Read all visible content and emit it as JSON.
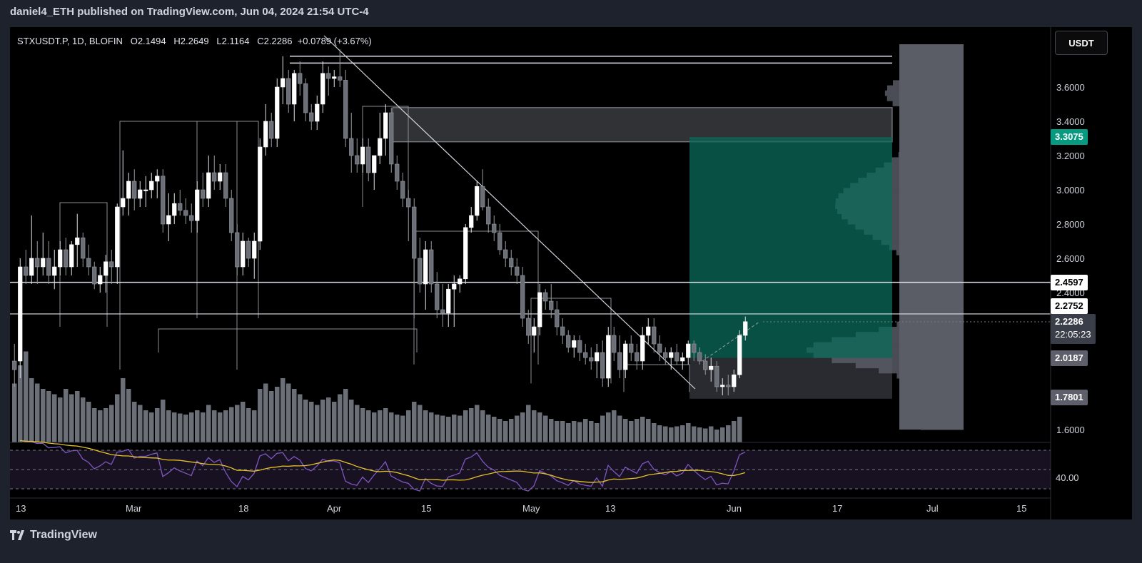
{
  "header": {
    "publisher_line": "daniel4_ETH published on TradingView.com, Jun 04, 2024 21:54 UTC-4"
  },
  "legend": {
    "symbol": "STXUSDT.P, 1D, BLOFIN",
    "open": "O2.1494",
    "high": "H2.2649",
    "low": "L2.1164",
    "close": "C2.2286",
    "change": "+0.0789 (+3.67%)"
  },
  "currency_button": "USDT",
  "price_tags": {
    "target": "3.3075",
    "level_high": "2.4597",
    "level_mid": "2.2752",
    "last": "2.2286",
    "countdown": "22:05:23",
    "entry": "2.0187",
    "stop": "1.7801"
  },
  "rsi_label": "40.00",
  "footer": {
    "brand": "TradingView"
  },
  "colors": {
    "background": "#000000",
    "target_zone": "#0b6b5a",
    "target_tag": "#089981",
    "volume": "#6b6f78",
    "rsi_line": "#7e57c2",
    "rsi_ma": "#e6c229"
  },
  "chart_data": {
    "type": "candlestick",
    "symbol": "STXUSDT.P",
    "timeframe": "1D",
    "y_ticks": [
      1.6,
      2.0,
      2.2,
      2.4,
      2.6,
      2.8,
      3.0,
      3.2,
      3.4,
      3.6
    ],
    "y_tick_labels": [
      "1.6000",
      "2.4000",
      "2.6000",
      "2.8000",
      "3.0000",
      "3.2000",
      "3.4000",
      "3.6000"
    ],
    "x_labels": [
      "13",
      "Mar",
      "18",
      "Apr",
      "15",
      "May",
      "13",
      "Jun",
      "17",
      "Jul",
      "15"
    ],
    "horizontal_levels": [
      3.78,
      3.74,
      2.4597,
      2.2752
    ],
    "position": {
      "target": 3.3075,
      "entry": 2.0187,
      "stop": 1.7801
    },
    "supply_zone": [
      3.28,
      3.48
    ],
    "candles": [
      [
        2.0,
        2.1,
        1.85,
        1.95
      ],
      [
        2.0,
        2.6,
        1.9,
        2.55
      ],
      [
        2.55,
        2.65,
        2.45,
        2.5
      ],
      [
        2.5,
        2.85,
        2.45,
        2.6
      ],
      [
        2.6,
        2.7,
        2.45,
        2.55
      ],
      [
        2.55,
        2.75,
        2.5,
        2.6
      ],
      [
        2.6,
        2.7,
        2.45,
        2.5
      ],
      [
        2.5,
        2.65,
        2.42,
        2.55
      ],
      [
        2.55,
        2.7,
        2.5,
        2.65
      ],
      [
        2.65,
        2.72,
        2.5,
        2.55
      ],
      [
        2.55,
        2.7,
        2.5,
        2.68
      ],
      [
        2.68,
        2.86,
        2.55,
        2.72
      ],
      [
        2.72,
        2.75,
        2.55,
        2.6
      ],
      [
        2.6,
        2.68,
        2.5,
        2.55
      ],
      [
        2.55,
        2.58,
        2.42,
        2.45
      ],
      [
        2.45,
        2.55,
        2.4,
        2.5
      ],
      [
        2.5,
        2.62,
        2.4,
        2.58
      ],
      [
        2.58,
        2.65,
        2.45,
        2.55
      ],
      [
        2.55,
        2.92,
        2.45,
        2.9
      ],
      [
        2.9,
        3.23,
        2.85,
        2.95
      ],
      [
        2.95,
        3.1,
        2.85,
        3.05
      ],
      [
        3.05,
        3.12,
        2.88,
        2.95
      ],
      [
        2.95,
        3.05,
        2.9,
        3.0
      ],
      [
        3.0,
        3.08,
        2.9,
        3.0
      ],
      [
        3.0,
        3.1,
        2.95,
        3.05
      ],
      [
        3.05,
        3.12,
        2.95,
        3.08
      ],
      [
        3.08,
        3.12,
        2.75,
        2.8
      ],
      [
        2.8,
        2.98,
        2.7,
        2.85
      ],
      [
        2.85,
        2.98,
        2.8,
        2.92
      ],
      [
        2.92,
        3.0,
        2.85,
        2.88
      ],
      [
        2.88,
        2.95,
        2.8,
        2.85
      ],
      [
        2.85,
        2.92,
        2.75,
        2.82
      ],
      [
        2.82,
        3.05,
        2.75,
        3.0
      ],
      [
        3.0,
        3.1,
        2.9,
        2.95
      ],
      [
        2.95,
        3.2,
        2.9,
        3.1
      ],
      [
        3.1,
        3.2,
        3.0,
        3.05
      ],
      [
        3.05,
        3.15,
        3.0,
        3.1
      ],
      [
        3.1,
        3.15,
        2.9,
        2.95
      ],
      [
        2.95,
        3.0,
        2.7,
        2.75
      ],
      [
        2.75,
        2.8,
        2.5,
        2.55
      ],
      [
        2.55,
        2.75,
        2.5,
        2.7
      ],
      [
        2.7,
        2.72,
        2.55,
        2.6
      ],
      [
        2.6,
        2.75,
        2.48,
        2.7
      ],
      [
        2.7,
        3.3,
        2.65,
        3.25
      ],
      [
        3.25,
        3.5,
        3.2,
        3.4
      ],
      [
        3.4,
        3.45,
        3.25,
        3.3
      ],
      [
        3.3,
        3.65,
        3.25,
        3.6
      ],
      [
        3.6,
        3.78,
        3.5,
        3.65
      ],
      [
        3.65,
        3.7,
        3.45,
        3.5
      ],
      [
        3.5,
        3.7,
        3.4,
        3.68
      ],
      [
        3.68,
        3.75,
        3.55,
        3.62
      ],
      [
        3.62,
        3.65,
        3.4,
        3.45
      ],
      [
        3.45,
        3.5,
        3.35,
        3.4
      ],
      [
        3.4,
        3.55,
        3.35,
        3.5
      ],
      [
        3.5,
        3.75,
        3.45,
        3.68
      ],
      [
        3.68,
        3.72,
        3.55,
        3.65
      ],
      [
        3.65,
        3.7,
        3.6,
        3.66
      ],
      [
        3.66,
        3.82,
        3.6,
        3.64
      ],
      [
        3.64,
        3.7,
        3.25,
        3.3
      ],
      [
        3.3,
        3.45,
        3.1,
        3.2
      ],
      [
        3.2,
        3.3,
        3.1,
        3.15
      ],
      [
        3.15,
        3.3,
        3.1,
        3.25
      ],
      [
        3.25,
        3.3,
        3.05,
        3.1
      ],
      [
        3.1,
        3.2,
        3.0,
        3.2
      ],
      [
        3.2,
        3.45,
        3.15,
        3.3
      ],
      [
        3.3,
        3.5,
        3.2,
        3.45
      ],
      [
        3.45,
        3.48,
        3.1,
        3.15
      ],
      [
        3.15,
        3.2,
        3.0,
        3.05
      ],
      [
        3.05,
        3.1,
        2.9,
        2.95
      ],
      [
        2.95,
        3.0,
        2.7,
        2.9
      ],
      [
        2.9,
        2.95,
        2.25,
        2.6
      ],
      [
        2.6,
        2.72,
        2.4,
        2.45
      ],
      [
        2.45,
        2.7,
        2.3,
        2.65
      ],
      [
        2.65,
        2.7,
        2.4,
        2.45
      ],
      [
        2.45,
        2.52,
        2.25,
        2.3
      ],
      [
        2.3,
        2.45,
        2.2,
        2.28
      ],
      [
        2.28,
        2.45,
        2.2,
        2.42
      ],
      [
        2.42,
        2.5,
        2.2,
        2.45
      ],
      [
        2.45,
        2.5,
        2.4,
        2.48
      ],
      [
        2.48,
        2.8,
        2.45,
        2.78
      ],
      [
        2.78,
        2.9,
        2.75,
        2.85
      ],
      [
        2.85,
        3.05,
        2.82,
        3.02
      ],
      [
        3.02,
        3.12,
        2.88,
        2.9
      ],
      [
        2.9,
        2.95,
        2.75,
        2.8
      ],
      [
        2.8,
        2.85,
        2.7,
        2.75
      ],
      [
        2.75,
        2.8,
        2.62,
        2.65
      ],
      [
        2.65,
        2.7,
        2.55,
        2.6
      ],
      [
        2.6,
        2.65,
        2.5,
        2.55
      ],
      [
        2.55,
        2.6,
        2.45,
        2.5
      ],
      [
        2.5,
        2.55,
        2.2,
        2.25
      ],
      [
        2.25,
        2.3,
        2.1,
        2.15
      ],
      [
        2.15,
        2.25,
        2.05,
        2.2
      ],
      [
        2.2,
        2.45,
        2.15,
        2.4
      ],
      [
        2.4,
        2.42,
        2.3,
        2.35
      ],
      [
        2.35,
        2.45,
        2.25,
        2.3
      ],
      [
        2.3,
        2.35,
        2.15,
        2.2
      ],
      [
        2.2,
        2.25,
        2.1,
        2.15
      ],
      [
        2.15,
        2.18,
        2.05,
        2.08
      ],
      [
        2.08,
        2.15,
        2.02,
        2.12
      ],
      [
        2.12,
        2.15,
        2.0,
        2.05
      ],
      [
        2.05,
        2.1,
        1.98,
        2.02
      ],
      [
        2.02,
        2.08,
        1.95,
        2.0
      ],
      [
        2.0,
        2.1,
        1.9,
        2.05
      ],
      [
        2.05,
        2.12,
        1.85,
        1.9
      ],
      [
        1.9,
        2.2,
        1.85,
        2.15
      ],
      [
        2.15,
        2.2,
        2.0,
        2.05
      ],
      [
        2.05,
        2.15,
        1.9,
        1.95
      ],
      [
        1.95,
        2.12,
        1.9,
        2.1
      ],
      [
        2.1,
        2.15,
        2.0,
        2.05
      ],
      [
        2.05,
        2.1,
        1.95,
        2.0
      ],
      [
        2.0,
        2.2,
        1.95,
        2.15
      ],
      [
        2.15,
        2.25,
        2.1,
        2.2
      ],
      [
        2.2,
        2.25,
        2.05,
        2.1
      ],
      [
        2.1,
        2.15,
        2.0,
        2.05
      ],
      [
        2.05,
        2.08,
        1.98,
        2.02
      ],
      [
        2.02,
        2.08,
        1.95,
        2.05
      ],
      [
        2.05,
        2.1,
        1.98,
        2.0
      ],
      [
        2.0,
        2.05,
        1.95,
        2.02
      ],
      [
        2.02,
        2.12,
        1.98,
        2.1
      ],
      [
        2.1,
        2.12,
        2.0,
        2.05
      ],
      [
        2.05,
        2.08,
        1.98,
        2.0
      ],
      [
        2.0,
        2.04,
        1.92,
        1.95
      ],
      [
        1.95,
        2.02,
        1.88,
        1.97
      ],
      [
        1.97,
        2.0,
        1.82,
        1.85
      ],
      [
        1.85,
        1.9,
        1.8,
        1.86
      ],
      [
        1.86,
        1.92,
        1.8,
        1.85
      ],
      [
        1.85,
        1.95,
        1.82,
        1.92
      ],
      [
        1.92,
        2.18,
        1.9,
        2.15
      ],
      [
        2.15,
        2.26,
        2.12,
        2.23
      ]
    ],
    "volume": [
      0.55,
      0.72,
      0.85,
      0.6,
      0.55,
      0.5,
      0.48,
      0.45,
      0.42,
      0.5,
      0.45,
      0.48,
      0.42,
      0.38,
      0.32,
      0.3,
      0.32,
      0.35,
      0.45,
      0.6,
      0.5,
      0.38,
      0.35,
      0.3,
      0.28,
      0.32,
      0.4,
      0.3,
      0.28,
      0.27,
      0.26,
      0.28,
      0.3,
      0.28,
      0.35,
      0.3,
      0.28,
      0.3,
      0.33,
      0.35,
      0.38,
      0.32,
      0.3,
      0.5,
      0.55,
      0.48,
      0.52,
      0.6,
      0.55,
      0.5,
      0.45,
      0.4,
      0.38,
      0.35,
      0.4,
      0.42,
      0.38,
      0.45,
      0.5,
      0.4,
      0.35,
      0.32,
      0.3,
      0.28,
      0.3,
      0.32,
      0.28,
      0.26,
      0.25,
      0.3,
      0.38,
      0.35,
      0.3,
      0.28,
      0.26,
      0.25,
      0.24,
      0.26,
      0.25,
      0.3,
      0.32,
      0.35,
      0.3,
      0.26,
      0.24,
      0.22,
      0.2,
      0.22,
      0.25,
      0.28,
      0.35,
      0.3,
      0.28,
      0.25,
      0.22,
      0.2,
      0.2,
      0.18,
      0.2,
      0.19,
      0.22,
      0.2,
      0.18,
      0.25,
      0.28,
      0.3,
      0.25,
      0.22,
      0.2,
      0.22,
      0.24,
      0.22,
      0.18,
      0.16,
      0.15,
      0.14,
      0.15,
      0.16,
      0.18,
      0.15,
      0.14,
      0.13,
      0.15,
      0.12,
      0.14,
      0.16,
      0.2,
      0.24
    ],
    "rsi_levels": [
      70,
      50,
      30
    ]
  }
}
